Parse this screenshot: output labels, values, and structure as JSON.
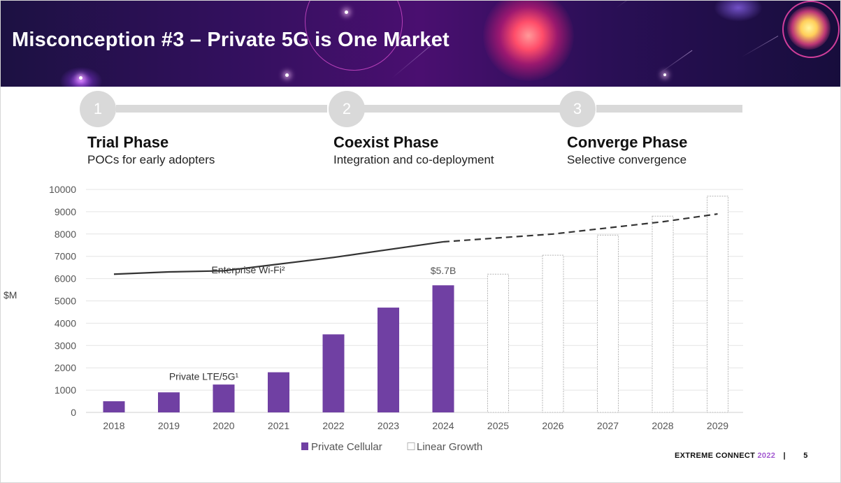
{
  "slide": {
    "title": "Misconception #3 – Private 5G is One Market",
    "page_number": "5",
    "footer_brand": "EXTREME CONNECT",
    "footer_year": "2022",
    "footer_separator": "|"
  },
  "phases": [
    {
      "number": "1",
      "name": "Trial Phase",
      "description": "POCs for early adopters"
    },
    {
      "number": "2",
      "name": "Coexist Phase",
      "description": "Integration and co-deployment"
    },
    {
      "number": "3",
      "name": "Converge Phase",
      "description": "Selective convergence"
    }
  ],
  "colors": {
    "private_cellular": "#7040a3",
    "linear_growth_fill": "#ffffff",
    "linear_growth_border": "#b5b5b5",
    "wifi_line": "#333333",
    "phase_gray": "#d9d9d9",
    "accent_year": "#a35ad1"
  },
  "chart_data": {
    "type": "bar",
    "ylabel": "$M",
    "ylim": [
      0,
      10000
    ],
    "yticks": [
      0,
      1000,
      2000,
      3000,
      4000,
      5000,
      6000,
      7000,
      8000,
      9000,
      10000
    ],
    "categories": [
      "2018",
      "2019",
      "2020",
      "2021",
      "2022",
      "2023",
      "2024",
      "2025",
      "2026",
      "2027",
      "2028",
      "2029"
    ],
    "series": [
      {
        "name": "Private Cellular",
        "style": "solid",
        "values": [
          500,
          900,
          1250,
          1800,
          3500,
          4700,
          5700,
          null,
          null,
          null,
          null,
          null
        ]
      },
      {
        "name": "Linear Growth",
        "style": "outline",
        "values": [
          null,
          null,
          null,
          null,
          null,
          null,
          null,
          6200,
          7050,
          7950,
          8800,
          9700
        ]
      }
    ],
    "lines": [
      {
        "label": "Enterprise Wi-Fi²",
        "solid": [
          [
            "2018",
            6200
          ],
          [
            "2019",
            6300
          ],
          [
            "2020",
            6350
          ],
          [
            "2022",
            6950
          ],
          [
            "2024",
            7650
          ]
        ],
        "dashed": [
          [
            "2024",
            7650
          ],
          [
            "2026",
            8000
          ],
          [
            "2028",
            8550
          ],
          [
            "2029",
            8900
          ]
        ]
      }
    ],
    "annotations": [
      {
        "text": "$5.7B",
        "category": "2024"
      },
      {
        "text": "Private LTE/5G¹",
        "category": "2019",
        "value": 2400
      },
      {
        "text": "Enterprise Wi-Fi²",
        "category": "2020",
        "value": 7050
      }
    ],
    "legend": [
      "Private Cellular",
      "Linear Growth"
    ],
    "legend_position": "bottom",
    "grid": true
  }
}
